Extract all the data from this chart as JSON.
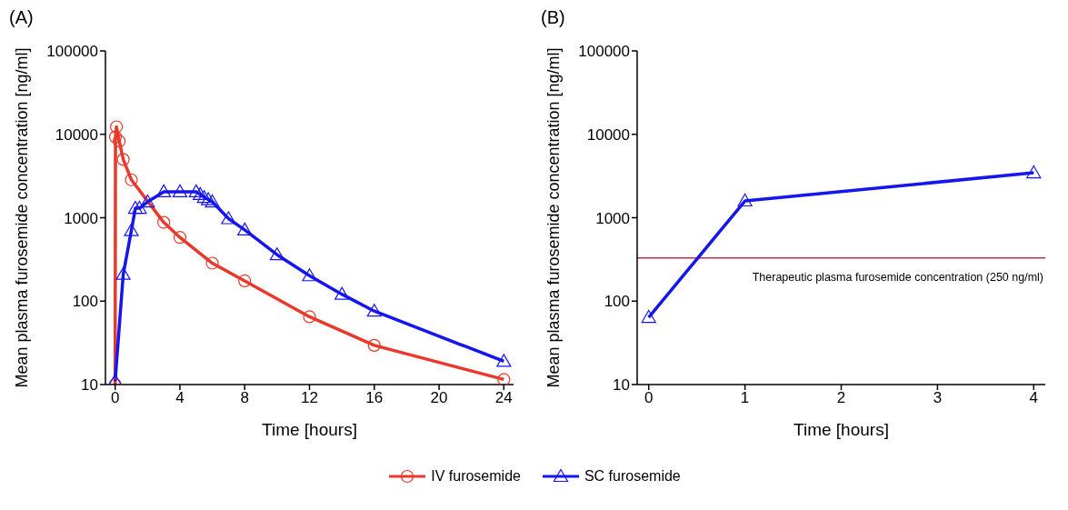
{
  "chart_data": [
    {
      "type": "line",
      "title": "(A)",
      "xlabel": "Time [hours]",
      "ylabel": "Mean plasma furosemide concentration [ng/ml]",
      "xlim": [
        -0.6,
        24.6
      ],
      "xticks": [
        0,
        4,
        8,
        12,
        16,
        20,
        24
      ],
      "ylim": [
        10,
        100000
      ],
      "yticks": [
        10,
        100,
        1000,
        10000,
        100000
      ],
      "log": "y",
      "legend": "bottom",
      "series": [
        {
          "name": "IV furosemide",
          "color": "#e8392b",
          "marker": "circle",
          "x": [
            0,
            0.02,
            0.08,
            0.25,
            0.5,
            1,
            3,
            4,
            6,
            8,
            12,
            16,
            24
          ],
          "values": [
            10,
            9300,
            12300,
            8300,
            5000,
            2850,
            880,
            580,
            285,
            175,
            65,
            29.5,
            11.5
          ]
        },
        {
          "name": "SC furosemide",
          "color": "#1515f0",
          "marker": "triangle",
          "x": [
            0,
            0.5,
            1,
            1.25,
            1.5,
            2,
            3,
            4,
            5,
            5.25,
            5.5,
            5.75,
            6,
            7,
            8,
            10,
            12,
            14,
            16,
            24
          ],
          "values": [
            11,
            210,
            700,
            1300,
            1300,
            1550,
            2050,
            2050,
            2050,
            1900,
            1750,
            1650,
            1550,
            975,
            715,
            360,
            202,
            121,
            76,
            19
          ]
        }
      ]
    },
    {
      "type": "line",
      "title": "(B)",
      "xlabel": "Time [hours]",
      "ylabel": "Mean plasma furosemide concentration [ng/ml]",
      "xlim": [
        -0.12,
        4.12
      ],
      "xticks": [
        0,
        1,
        2,
        3,
        4
      ],
      "ylim": [
        10,
        100000
      ],
      "yticks": [
        10,
        100,
        1000,
        10000,
        100000
      ],
      "log": "y",
      "ref_lines": [
        {
          "axis": "y",
          "value": 330,
          "label": "Therapeutic plasma furosemide concentration (250 ng/ml)",
          "color": "#c0304a"
        }
      ],
      "series": [
        {
          "color": "#1515f0",
          "marker": "triangle",
          "x": [
            0,
            1,
            4
          ],
          "values": [
            64,
            1590,
            3460
          ]
        }
      ]
    }
  ]
}
